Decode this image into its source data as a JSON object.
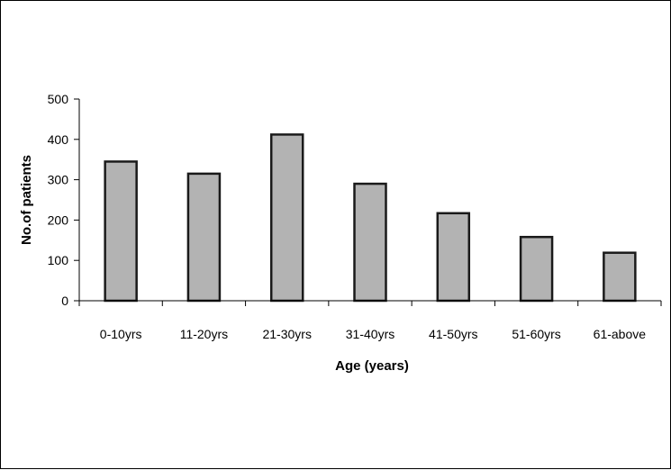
{
  "chart_data": {
    "type": "bar",
    "title": "",
    "xlabel": "Age (years)",
    "ylabel": "No.of patients",
    "categories": [
      "0-10yrs",
      "11-20yrs",
      "21-30yrs",
      "31-40yrs",
      "41-50yrs",
      "51-60yrs",
      "61-above"
    ],
    "values": [
      345,
      315,
      412,
      290,
      217,
      158,
      119
    ],
    "ylim": [
      0,
      500
    ],
    "yticks": [
      0,
      100,
      200,
      300,
      400,
      500
    ],
    "grid": false,
    "legend": "none",
    "colors": {
      "bar_fill": "#b3b3b3",
      "bar_stroke": "#1a1a1a",
      "axis": "#000000"
    }
  }
}
